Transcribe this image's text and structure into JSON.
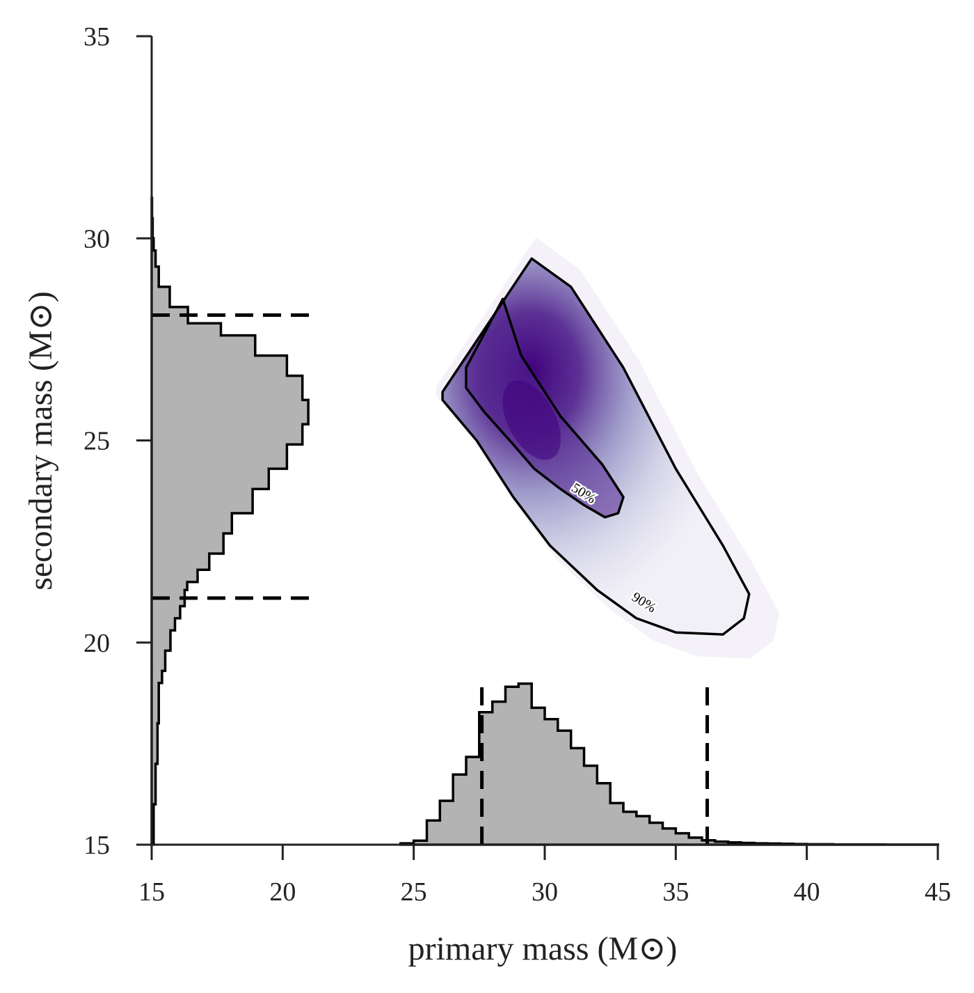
{
  "chart_data": {
    "type": "scatter",
    "subtype": "2D posterior density with marginal histograms",
    "xlabel": "primary mass (M⊙)",
    "ylabel": "secondary mass (M⊙)",
    "xlim": [
      15,
      45
    ],
    "ylim": [
      15,
      35
    ],
    "x_ticks": [
      "15",
      "20",
      "25",
      "30",
      "35",
      "40",
      "45"
    ],
    "y_ticks": [
      "15",
      "20",
      "25",
      "30",
      "35"
    ],
    "grid": false,
    "colors": {
      "density": "#3f007d",
      "histogram_fill": "#b3b3b3",
      "lines": "#000000",
      "axes": "#222222"
    },
    "primary_histogram": {
      "orientation": "vertical",
      "edges": [
        24.5,
        25.0,
        25.5,
        26.0,
        26.5,
        27.0,
        27.5,
        28.0,
        28.5,
        29.0,
        29.5,
        30.0,
        30.5,
        31.0,
        31.5,
        32.0,
        32.5,
        33.0,
        33.5,
        34.0,
        34.5,
        35.0,
        35.5,
        36.0,
        36.5,
        37.0,
        37.5,
        38.0,
        38.5,
        39.0,
        39.5,
        40.0,
        40.5,
        41.0,
        42.0,
        43.0,
        45.0
      ],
      "values": [
        0.3,
        0.9,
        5.5,
        10.0,
        16.0,
        20.0,
        30.2,
        32.6,
        36.0,
        36.7,
        31.2,
        28.6,
        26.0,
        22.0,
        18.0,
        14.0,
        9.5,
        7.5,
        6.5,
        5.0,
        3.7,
        2.6,
        1.6,
        1.0,
        0.7,
        0.5,
        0.4,
        0.3,
        0.25,
        0.2,
        0.15,
        0.1,
        0.1,
        0.05,
        0.03,
        0.01
      ],
      "credible_interval": [
        27.6,
        36.2
      ]
    },
    "secondary_histogram": {
      "orientation": "horizontal",
      "edges": [
        15.0,
        16.0,
        17.0,
        18.0,
        19.0,
        19.3,
        19.8,
        20.3,
        20.6,
        20.9,
        21.3,
        21.5,
        21.8,
        22.2,
        22.7,
        23.2,
        23.8,
        24.3,
        24.9,
        25.4,
        26.0,
        26.6,
        27.1,
        27.6,
        27.9,
        28.3,
        28.8,
        29.3,
        29.7,
        30.0,
        30.5,
        31.0
      ],
      "values": [
        0.3,
        0.6,
        0.9,
        1.1,
        1.6,
        2.1,
        2.9,
        3.6,
        4.4,
        5.1,
        5.5,
        7.1,
        8.9,
        11.1,
        12.4,
        15.6,
        18.1,
        20.9,
        23.3,
        24.2,
        23.3,
        20.9,
        16.0,
        10.7,
        5.6,
        2.8,
        1.1,
        0.6,
        0.3,
        0.15,
        0.05
      ],
      "credible_interval": [
        21.1,
        28.1
      ]
    },
    "joint_density": {
      "peak": [
        29.5,
        25.5
      ],
      "contours": [
        {
          "label": "50%",
          "points": [
            [
              27.0,
              26.8
            ],
            [
              28.4,
              28.5
            ],
            [
              29.1,
              27.1
            ],
            [
              30.6,
              25.6
            ],
            [
              32.2,
              24.4
            ],
            [
              33.0,
              23.6
            ],
            [
              32.8,
              23.2
            ],
            [
              32.3,
              23.1
            ],
            [
              31.5,
              23.4
            ],
            [
              30.6,
              23.8
            ],
            [
              29.6,
              24.3
            ],
            [
              28.8,
              24.9
            ],
            [
              27.7,
              25.7
            ],
            [
              27.0,
              26.3
            ]
          ]
        },
        {
          "label": "90%",
          "points": [
            [
              26.1,
              26.2
            ],
            [
              29.5,
              29.5
            ],
            [
              31.0,
              28.8
            ],
            [
              33.0,
              26.8
            ],
            [
              35.0,
              24.3
            ],
            [
              36.8,
              22.4
            ],
            [
              37.8,
              21.2
            ],
            [
              37.6,
              20.6
            ],
            [
              36.8,
              20.2
            ],
            [
              35.0,
              20.25
            ],
            [
              33.5,
              20.6
            ],
            [
              32.0,
              21.3
            ],
            [
              30.2,
              22.4
            ],
            [
              28.8,
              23.6
            ],
            [
              27.4,
              25.0
            ],
            [
              26.1,
              26.0
            ]
          ]
        }
      ]
    }
  }
}
